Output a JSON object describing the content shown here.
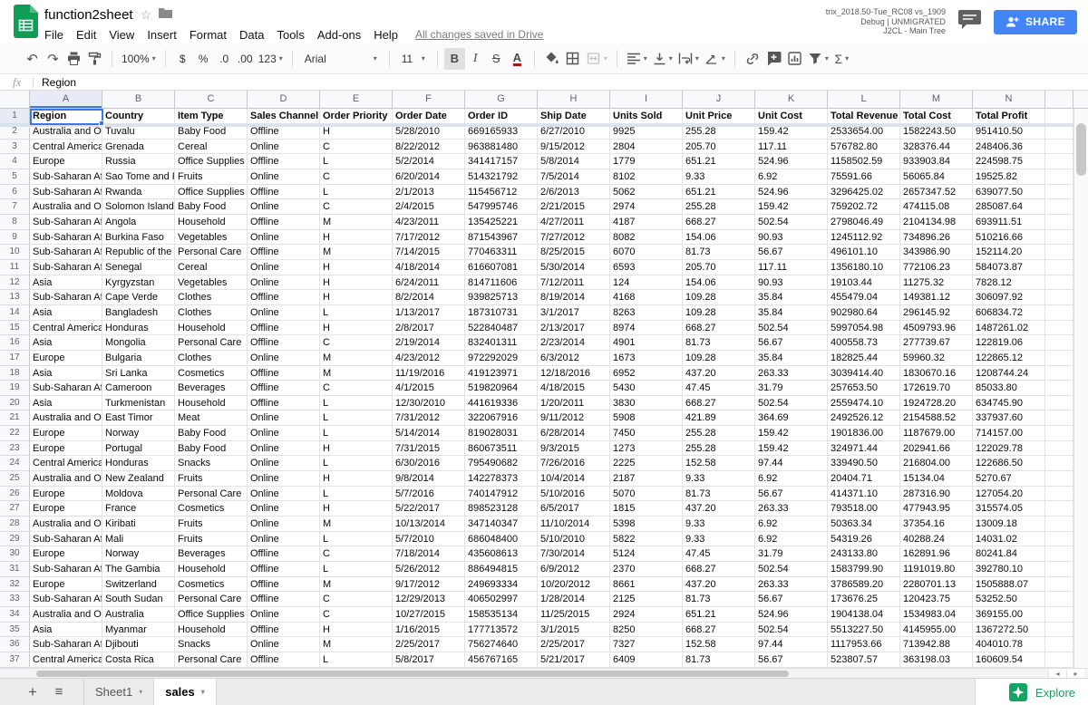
{
  "app": {
    "title": "function2sheet",
    "menu_items": [
      "File",
      "Edit",
      "View",
      "Insert",
      "Format",
      "Data",
      "Tools",
      "Add-ons",
      "Help"
    ],
    "save_status": "All changes saved in Drive",
    "build_info": [
      "trix_2018.50-Tue_RC08 vs_1909",
      "Debug | UNMIGRATED",
      "J2CL - Main Tree"
    ],
    "share_label": "SHARE"
  },
  "toolbar": {
    "zoom_value": "100%",
    "currency": "$",
    "percent": "%",
    "decimal_decrease": ".0",
    "decimal_increase": ".00",
    "more_formats": "123",
    "font_name": "Arial",
    "font_size": "11",
    "bold": "B",
    "italic": "I",
    "strikethrough": "S",
    "text_color": "A",
    "functions": "Σ"
  },
  "icons": {
    "undo": "↶",
    "redo": "↷",
    "star": "☆",
    "caret": "▾",
    "add_sheet": "+",
    "all_sheets": "≡",
    "scroll_left": "◂",
    "scroll_right": "▸"
  },
  "formula_bar": {
    "fx_label": "fx",
    "value": "Region"
  },
  "grid": {
    "selected_cell": "A1",
    "column_letters": [
      "A",
      "B",
      "C",
      "D",
      "E",
      "F",
      "G",
      "H",
      "I",
      "J",
      "K",
      "L",
      "M",
      "N"
    ],
    "header_row": [
      "Region",
      "Country",
      "Item Type",
      "Sales Channel",
      "Order Priority",
      "Order Date",
      "Order ID",
      "Ship Date",
      "Units Sold",
      "Unit Price",
      "Unit Cost",
      "Total Revenue",
      "Total Cost",
      "Total Profit"
    ],
    "rows": [
      [
        "Australia and Oc",
        "Tuvalu",
        "Baby Food",
        "Offline",
        "H",
        "5/28/2010",
        "669165933",
        "6/27/2010",
        "9925",
        "255.28",
        "159.42",
        "2533654.00",
        "1582243.50",
        "951410.50"
      ],
      [
        "Central America",
        "Grenada",
        "Cereal",
        "Online",
        "C",
        "8/22/2012",
        "963881480",
        "9/15/2012",
        "2804",
        "205.70",
        "117.11",
        "576782.80",
        "328376.44",
        "248406.36"
      ],
      [
        "Europe",
        "Russia",
        "Office Supplies",
        "Offline",
        "L",
        "5/2/2014",
        "341417157",
        "5/8/2014",
        "1779",
        "651.21",
        "524.96",
        "1158502.59",
        "933903.84",
        "224598.75"
      ],
      [
        "Sub-Saharan Afr",
        "Sao Tome and P",
        "Fruits",
        "Online",
        "C",
        "6/20/2014",
        "514321792",
        "7/5/2014",
        "8102",
        "9.33",
        "6.92",
        "75591.66",
        "56065.84",
        "19525.82"
      ],
      [
        "Sub-Saharan Afr",
        "Rwanda",
        "Office Supplies",
        "Offline",
        "L",
        "2/1/2013",
        "115456712",
        "2/6/2013",
        "5062",
        "651.21",
        "524.96",
        "3296425.02",
        "2657347.52",
        "639077.50"
      ],
      [
        "Australia and Oc",
        "Solomon Islands",
        "Baby Food",
        "Online",
        "C",
        "2/4/2015",
        "547995746",
        "2/21/2015",
        "2974",
        "255.28",
        "159.42",
        "759202.72",
        "474115.08",
        "285087.64"
      ],
      [
        "Sub-Saharan Afr",
        "Angola",
        "Household",
        "Offline",
        "M",
        "4/23/2011",
        "135425221",
        "4/27/2011",
        "4187",
        "668.27",
        "502.54",
        "2798046.49",
        "2104134.98",
        "693911.51"
      ],
      [
        "Sub-Saharan Afr",
        "Burkina Faso",
        "Vegetables",
        "Online",
        "H",
        "7/17/2012",
        "871543967",
        "7/27/2012",
        "8082",
        "154.06",
        "90.93",
        "1245112.92",
        "734896.26",
        "510216.66"
      ],
      [
        "Sub-Saharan Afr",
        "Republic of the C",
        "Personal Care",
        "Offline",
        "M",
        "7/14/2015",
        "770463311",
        "8/25/2015",
        "6070",
        "81.73",
        "56.67",
        "496101.10",
        "343986.90",
        "152114.20"
      ],
      [
        "Sub-Saharan Afr",
        "Senegal",
        "Cereal",
        "Online",
        "H",
        "4/18/2014",
        "616607081",
        "5/30/2014",
        "6593",
        "205.70",
        "117.11",
        "1356180.10",
        "772106.23",
        "584073.87"
      ],
      [
        "Asia",
        "Kyrgyzstan",
        "Vegetables",
        "Online",
        "H",
        "6/24/2011",
        "814711606",
        "7/12/2011",
        "124",
        "154.06",
        "90.93",
        "19103.44",
        "11275.32",
        "7828.12"
      ],
      [
        "Sub-Saharan Afr",
        "Cape Verde",
        "Clothes",
        "Offline",
        "H",
        "8/2/2014",
        "939825713",
        "8/19/2014",
        "4168",
        "109.28",
        "35.84",
        "455479.04",
        "149381.12",
        "306097.92"
      ],
      [
        "Asia",
        "Bangladesh",
        "Clothes",
        "Online",
        "L",
        "1/13/2017",
        "187310731",
        "3/1/2017",
        "8263",
        "109.28",
        "35.84",
        "902980.64",
        "296145.92",
        "606834.72"
      ],
      [
        "Central America",
        "Honduras",
        "Household",
        "Offline",
        "H",
        "2/8/2017",
        "522840487",
        "2/13/2017",
        "8974",
        "668.27",
        "502.54",
        "5997054.98",
        "4509793.96",
        "1487261.02"
      ],
      [
        "Asia",
        "Mongolia",
        "Personal Care",
        "Offline",
        "C",
        "2/19/2014",
        "832401311",
        "2/23/2014",
        "4901",
        "81.73",
        "56.67",
        "400558.73",
        "277739.67",
        "122819.06"
      ],
      [
        "Europe",
        "Bulgaria",
        "Clothes",
        "Online",
        "M",
        "4/23/2012",
        "972292029",
        "6/3/2012",
        "1673",
        "109.28",
        "35.84",
        "182825.44",
        "59960.32",
        "122865.12"
      ],
      [
        "Asia",
        "Sri Lanka",
        "Cosmetics",
        "Offline",
        "M",
        "11/19/2016",
        "419123971",
        "12/18/2016",
        "6952",
        "437.20",
        "263.33",
        "3039414.40",
        "1830670.16",
        "1208744.24"
      ],
      [
        "Sub-Saharan Afr",
        "Cameroon",
        "Beverages",
        "Offline",
        "C",
        "4/1/2015",
        "519820964",
        "4/18/2015",
        "5430",
        "47.45",
        "31.79",
        "257653.50",
        "172619.70",
        "85033.80"
      ],
      [
        "Asia",
        "Turkmenistan",
        "Household",
        "Offline",
        "L",
        "12/30/2010",
        "441619336",
        "1/20/2011",
        "3830",
        "668.27",
        "502.54",
        "2559474.10",
        "1924728.20",
        "634745.90"
      ],
      [
        "Australia and Oc",
        "East Timor",
        "Meat",
        "Online",
        "L",
        "7/31/2012",
        "322067916",
        "9/11/2012",
        "5908",
        "421.89",
        "364.69",
        "2492526.12",
        "2154588.52",
        "337937.60"
      ],
      [
        "Europe",
        "Norway",
        "Baby Food",
        "Online",
        "L",
        "5/14/2014",
        "819028031",
        "6/28/2014",
        "7450",
        "255.28",
        "159.42",
        "1901836.00",
        "1187679.00",
        "714157.00"
      ],
      [
        "Europe",
        "Portugal",
        "Baby Food",
        "Online",
        "H",
        "7/31/2015",
        "860673511",
        "9/3/2015",
        "1273",
        "255.28",
        "159.42",
        "324971.44",
        "202941.66",
        "122029.78"
      ],
      [
        "Central America",
        "Honduras",
        "Snacks",
        "Online",
        "L",
        "6/30/2016",
        "795490682",
        "7/26/2016",
        "2225",
        "152.58",
        "97.44",
        "339490.50",
        "216804.00",
        "122686.50"
      ],
      [
        "Australia and Oc",
        "New Zealand",
        "Fruits",
        "Online",
        "H",
        "9/8/2014",
        "142278373",
        "10/4/2014",
        "2187",
        "9.33",
        "6.92",
        "20404.71",
        "15134.04",
        "5270.67"
      ],
      [
        "Europe",
        "Moldova",
        "Personal Care",
        "Online",
        "L",
        "5/7/2016",
        "740147912",
        "5/10/2016",
        "5070",
        "81.73",
        "56.67",
        "414371.10",
        "287316.90",
        "127054.20"
      ],
      [
        "Europe",
        "France",
        "Cosmetics",
        "Online",
        "H",
        "5/22/2017",
        "898523128",
        "6/5/2017",
        "1815",
        "437.20",
        "263.33",
        "793518.00",
        "477943.95",
        "315574.05"
      ],
      [
        "Australia and Oc",
        "Kiribati",
        "Fruits",
        "Online",
        "M",
        "10/13/2014",
        "347140347",
        "11/10/2014",
        "5398",
        "9.33",
        "6.92",
        "50363.34",
        "37354.16",
        "13009.18"
      ],
      [
        "Sub-Saharan Afr",
        "Mali",
        "Fruits",
        "Online",
        "L",
        "5/7/2010",
        "686048400",
        "5/10/2010",
        "5822",
        "9.33",
        "6.92",
        "54319.26",
        "40288.24",
        "14031.02"
      ],
      [
        "Europe",
        "Norway",
        "Beverages",
        "Offline",
        "C",
        "7/18/2014",
        "435608613",
        "7/30/2014",
        "5124",
        "47.45",
        "31.79",
        "243133.80",
        "162891.96",
        "80241.84"
      ],
      [
        "Sub-Saharan Afr",
        "The Gambia",
        "Household",
        "Offline",
        "L",
        "5/26/2012",
        "886494815",
        "6/9/2012",
        "2370",
        "668.27",
        "502.54",
        "1583799.90",
        "1191019.80",
        "392780.10"
      ],
      [
        "Europe",
        "Switzerland",
        "Cosmetics",
        "Offline",
        "M",
        "9/17/2012",
        "249693334",
        "10/20/2012",
        "8661",
        "437.20",
        "263.33",
        "3786589.20",
        "2280701.13",
        "1505888.07"
      ],
      [
        "Sub-Saharan Afr",
        "South Sudan",
        "Personal Care",
        "Offline",
        "C",
        "12/29/2013",
        "406502997",
        "1/28/2014",
        "2125",
        "81.73",
        "56.67",
        "173676.25",
        "120423.75",
        "53252.50"
      ],
      [
        "Australia and Oc",
        "Australia",
        "Office Supplies",
        "Online",
        "C",
        "10/27/2015",
        "158535134",
        "11/25/2015",
        "2924",
        "651.21",
        "524.96",
        "1904138.04",
        "1534983.04",
        "369155.00"
      ],
      [
        "Asia",
        "Myanmar",
        "Household",
        "Offline",
        "H",
        "1/16/2015",
        "177713572",
        "3/1/2015",
        "8250",
        "668.27",
        "502.54",
        "5513227.50",
        "4145955.00",
        "1367272.50"
      ],
      [
        "Sub-Saharan Afr",
        "Djibouti",
        "Snacks",
        "Online",
        "M",
        "2/25/2017",
        "756274640",
        "2/25/2017",
        "7327",
        "152.58",
        "97.44",
        "1117953.66",
        "713942.88",
        "404010.78"
      ],
      [
        "Central America",
        "Costa Rica",
        "Personal Care",
        "Offline",
        "L",
        "5/8/2017",
        "456767165",
        "5/21/2017",
        "6409",
        "81.73",
        "56.67",
        "523807.57",
        "363198.03",
        "160609.54"
      ]
    ]
  },
  "sheet_tabs": {
    "tabs": [
      {
        "label": "Sheet1",
        "active": false
      },
      {
        "label": "sales",
        "active": true
      }
    ],
    "explore_label": "Explore"
  }
}
